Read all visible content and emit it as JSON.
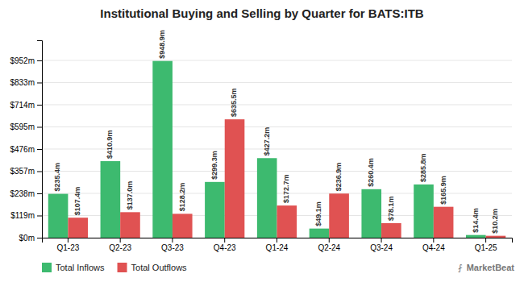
{
  "chart_data": {
    "type": "bar",
    "title": "Institutional Buying and Selling by Quarter for BATS:ITB",
    "categories": [
      "Q1-23",
      "Q2-23",
      "Q3-23",
      "Q4-23",
      "Q1-24",
      "Q2-24",
      "Q3-24",
      "Q4-24",
      "Q1-25"
    ],
    "series": [
      {
        "name": "Total Inflows",
        "color": "#3dba6f",
        "values": [
          235.4,
          410.9,
          948.9,
          299.3,
          427.2,
          49.1,
          260.4,
          285.8,
          14.4
        ],
        "value_labels": [
          "$235.4m",
          "$410.9m",
          "$948.9m",
          "$299.3m",
          "$427.2m",
          "$49.1m",
          "$260.4m",
          "$285.8m",
          "$14.4m"
        ]
      },
      {
        "name": "Total Outflows",
        "color": "#e05252",
        "values": [
          107.4,
          137.0,
          128.2,
          635.5,
          172.7,
          236.9,
          78.1,
          165.9,
          10.2
        ],
        "value_labels": [
          "$107.4m",
          "$137.0m",
          "$128.2m",
          "$635.5m",
          "$172.7m",
          "$236.9m",
          "$78.1m",
          "$165.9m",
          "$10.2m"
        ]
      }
    ],
    "ylim": [
      0,
      1060
    ],
    "yticks": [
      {
        "value": 0,
        "label": "$0m"
      },
      {
        "value": 119,
        "label": "$119m"
      },
      {
        "value": 238,
        "label": "$238m"
      },
      {
        "value": 357,
        "label": "$357m"
      },
      {
        "value": 476,
        "label": "$476m"
      },
      {
        "value": 595,
        "label": "$595m"
      },
      {
        "value": 714,
        "label": "$714m"
      },
      {
        "value": 833,
        "label": "$833m"
      },
      {
        "value": 952,
        "label": "$952m"
      }
    ],
    "grid": true,
    "legend": "lower left",
    "data_labels": true,
    "annotations": [
      "MarketBeat",
      "⨏"
    ]
  }
}
